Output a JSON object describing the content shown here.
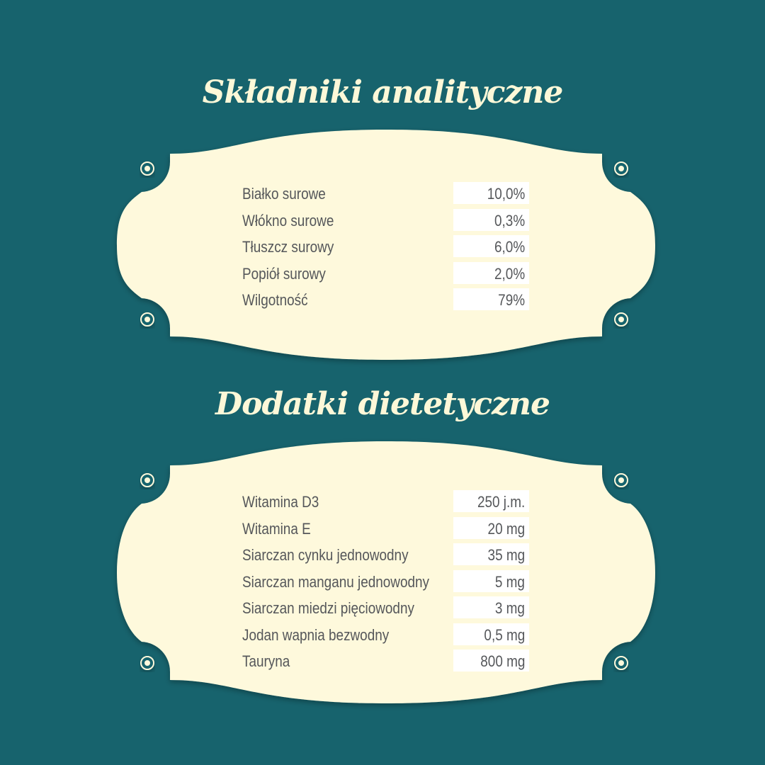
{
  "colors": {
    "background": "#17636d",
    "plaque": "#fef9dc",
    "text": "#55575a",
    "title": "#fdf8d8"
  },
  "sections": [
    {
      "title": "Składniki analityczne",
      "rows": [
        {
          "label": "Białko surowe",
          "value": "10,0%"
        },
        {
          "label": "Włókno surowe",
          "value": "0,3%"
        },
        {
          "label": "Tłuszcz surowy",
          "value": "6,0%"
        },
        {
          "label": "Popiół surowy",
          "value": "2,0%"
        },
        {
          "label": "Wilgotność",
          "value": "79%"
        }
      ]
    },
    {
      "title": "Dodatki dietetyczne",
      "rows": [
        {
          "label": "Witamina D3",
          "value": "250 j.m."
        },
        {
          "label": "Witamina E",
          "value": "20 mg"
        },
        {
          "label": "Siarczan cynku jednowodny",
          "value": "35 mg"
        },
        {
          "label": "Siarczan manganu jednowodny",
          "value": "5 mg"
        },
        {
          "label": "Siarczan miedzi pięciowodny",
          "value": "3 mg"
        },
        {
          "label": "Jodan wapnia bezwodny",
          "value": "0,5 mg"
        },
        {
          "label": "Tauryna",
          "value": "800 mg"
        }
      ]
    }
  ]
}
